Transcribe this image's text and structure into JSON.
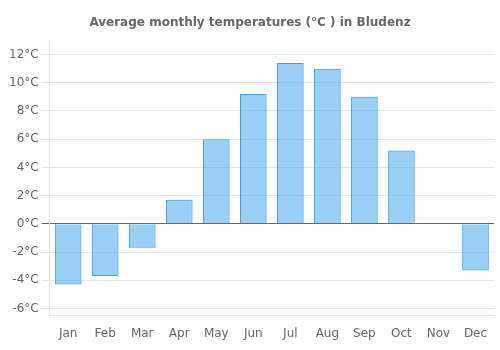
{
  "chart_data": {
    "type": "bar",
    "title": "Average monthly temperatures (°C ) in Bludenz",
    "categories": [
      "Jan",
      "Feb",
      "Mar",
      "Apr",
      "May",
      "Jun",
      "Jul",
      "Aug",
      "Sep",
      "Oct",
      "Nov",
      "Dec"
    ],
    "values": [
      -4.3,
      -3.7,
      -1.7,
      1.7,
      6.0,
      9.2,
      11.4,
      11.0,
      9.0,
      5.2,
      0.0,
      -3.3
    ],
    "ylim": [
      -6.5,
      13.0
    ],
    "yticks": [
      {
        "value": -6,
        "label": "-6°C"
      },
      {
        "value": -4,
        "label": "-4°C"
      },
      {
        "value": -2,
        "label": "-2°C"
      },
      {
        "value": 0,
        "label": "0°C"
      },
      {
        "value": 2,
        "label": "2°C"
      },
      {
        "value": 4,
        "label": "4°C"
      },
      {
        "value": 6,
        "label": "6°C"
      },
      {
        "value": 8,
        "label": "8°C"
      },
      {
        "value": 10,
        "label": "10°C"
      },
      {
        "value": 12,
        "label": "12°C"
      }
    ],
    "grid": true
  }
}
